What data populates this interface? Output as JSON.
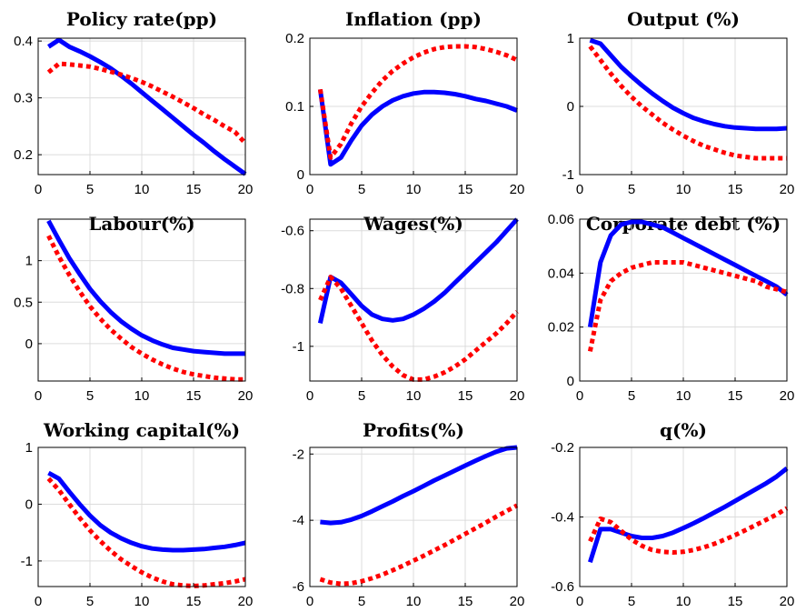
{
  "colors": {
    "series_solid": "#0000ff",
    "series_dotted": "#ff0000",
    "grid": "#dcdcdc"
  },
  "chart_data": [
    {
      "type": "line",
      "title": "Policy rate(pp)",
      "grid": true,
      "xlim": [
        0,
        20
      ],
      "ylim": [
        0.165,
        0.405
      ],
      "xticks": [
        0,
        5,
        10,
        15,
        20
      ],
      "yticks": [
        0.2,
        0.3,
        0.4
      ],
      "x": [
        1,
        2,
        3,
        4,
        5,
        6,
        7,
        8,
        9,
        10,
        11,
        12,
        13,
        14,
        15,
        16,
        17,
        18,
        19,
        20
      ],
      "series": [
        {
          "style": "solid",
          "values": [
            0.39,
            0.402,
            0.39,
            0.382,
            0.373,
            0.363,
            0.352,
            0.339,
            0.325,
            0.31,
            0.295,
            0.28,
            0.265,
            0.25,
            0.235,
            0.221,
            0.206,
            0.192,
            0.179,
            0.166
          ]
        },
        {
          "style": "dotted",
          "values": [
            0.345,
            0.36,
            0.359,
            0.357,
            0.355,
            0.351,
            0.346,
            0.341,
            0.335,
            0.328,
            0.32,
            0.311,
            0.302,
            0.292,
            0.282,
            0.271,
            0.261,
            0.25,
            0.24,
            0.22
          ]
        }
      ]
    },
    {
      "type": "line",
      "title": "Inflation (pp)",
      "grid": true,
      "xlim": [
        0,
        20
      ],
      "ylim": [
        0,
        0.2
      ],
      "xticks": [
        0,
        5,
        10,
        15,
        20
      ],
      "yticks": [
        0,
        0.1,
        0.2
      ],
      "x": [
        1,
        2,
        3,
        4,
        5,
        6,
        7,
        8,
        9,
        10,
        11,
        12,
        13,
        14,
        15,
        16,
        17,
        18,
        19,
        20
      ],
      "series": [
        {
          "style": "solid",
          "values": [
            0.125,
            0.015,
            0.025,
            0.05,
            0.072,
            0.088,
            0.1,
            0.109,
            0.115,
            0.119,
            0.121,
            0.121,
            0.12,
            0.118,
            0.115,
            0.111,
            0.108,
            0.104,
            0.1,
            0.094
          ]
        },
        {
          "style": "dotted",
          "values": [
            0.125,
            0.025,
            0.045,
            0.075,
            0.1,
            0.12,
            0.138,
            0.152,
            0.163,
            0.172,
            0.179,
            0.184,
            0.187,
            0.188,
            0.188,
            0.187,
            0.184,
            0.18,
            0.175,
            0.168
          ]
        }
      ]
    },
    {
      "type": "line",
      "title": "Output (%)",
      "grid": true,
      "xlim": [
        0,
        20
      ],
      "ylim": [
        -1,
        1
      ],
      "xticks": [
        0,
        5,
        10,
        15,
        20
      ],
      "yticks": [
        -1,
        0,
        1
      ],
      "x": [
        1,
        2,
        3,
        4,
        5,
        6,
        7,
        8,
        9,
        10,
        11,
        12,
        13,
        14,
        15,
        16,
        17,
        18,
        19,
        20
      ],
      "series": [
        {
          "style": "solid",
          "values": [
            0.97,
            0.92,
            0.75,
            0.58,
            0.44,
            0.31,
            0.19,
            0.08,
            -0.02,
            -0.1,
            -0.17,
            -0.22,
            -0.26,
            -0.29,
            -0.31,
            -0.32,
            -0.33,
            -0.33,
            -0.33,
            -0.32
          ]
        },
        {
          "style": "dotted",
          "values": [
            0.88,
            0.68,
            0.48,
            0.3,
            0.14,
            0.0,
            -0.12,
            -0.24,
            -0.34,
            -0.43,
            -0.51,
            -0.58,
            -0.63,
            -0.68,
            -0.72,
            -0.74,
            -0.76,
            -0.76,
            -0.76,
            -0.76
          ]
        }
      ]
    },
    {
      "type": "line",
      "title": "Labour(%)",
      "grid": true,
      "xlim": [
        0,
        20
      ],
      "ylim": [
        -0.45,
        1.5
      ],
      "xticks": [
        0,
        5,
        10,
        15,
        20
      ],
      "yticks": [
        0,
        0.5,
        1
      ],
      "x": [
        1,
        2,
        3,
        4,
        5,
        6,
        7,
        8,
        9,
        10,
        11,
        12,
        13,
        14,
        15,
        16,
        17,
        18,
        19,
        20
      ],
      "series": [
        {
          "style": "solid",
          "values": [
            1.48,
            1.25,
            1.03,
            0.84,
            0.66,
            0.51,
            0.38,
            0.27,
            0.18,
            0.1,
            0.04,
            -0.01,
            -0.05,
            -0.07,
            -0.09,
            -0.1,
            -0.11,
            -0.12,
            -0.12,
            -0.12
          ]
        },
        {
          "style": "dotted",
          "values": [
            1.3,
            1.05,
            0.83,
            0.63,
            0.45,
            0.3,
            0.17,
            0.06,
            -0.04,
            -0.12,
            -0.19,
            -0.25,
            -0.3,
            -0.34,
            -0.37,
            -0.39,
            -0.41,
            -0.42,
            -0.43,
            -0.43
          ]
        }
      ]
    },
    {
      "type": "line",
      "title": "Wages(%)",
      "grid": true,
      "xlim": [
        0,
        20
      ],
      "ylim": [
        -1.12,
        -0.56
      ],
      "xticks": [
        0,
        5,
        10,
        15,
        20
      ],
      "yticks": [
        -1,
        -0.8,
        -0.6
      ],
      "x": [
        1,
        2,
        3,
        4,
        5,
        6,
        7,
        8,
        9,
        10,
        11,
        12,
        13,
        14,
        15,
        16,
        17,
        18,
        19,
        20
      ],
      "series": [
        {
          "style": "solid",
          "values": [
            -0.92,
            -0.76,
            -0.78,
            -0.82,
            -0.86,
            -0.89,
            -0.905,
            -0.91,
            -0.905,
            -0.89,
            -0.87,
            -0.845,
            -0.815,
            -0.78,
            -0.745,
            -0.71,
            -0.675,
            -0.64,
            -0.6,
            -0.56
          ]
        },
        {
          "style": "dotted",
          "values": [
            -0.84,
            -0.76,
            -0.8,
            -0.86,
            -0.92,
            -0.98,
            -1.03,
            -1.07,
            -1.1,
            -1.115,
            -1.115,
            -1.105,
            -1.09,
            -1.07,
            -1.045,
            -1.015,
            -0.985,
            -0.955,
            -0.92,
            -0.88
          ]
        }
      ]
    },
    {
      "type": "line",
      "title": "Corporate debt (%)",
      "grid": true,
      "xlim": [
        0,
        20
      ],
      "ylim": [
        0,
        0.06
      ],
      "xticks": [
        0,
        5,
        10,
        15,
        20
      ],
      "yticks": [
        0,
        0.02,
        0.04,
        0.06
      ],
      "x": [
        1,
        2,
        3,
        4,
        5,
        6,
        7,
        8,
        9,
        10,
        11,
        12,
        13,
        14,
        15,
        16,
        17,
        18,
        19,
        20
      ],
      "series": [
        {
          "style": "solid",
          "values": [
            0.02,
            0.044,
            0.054,
            0.058,
            0.059,
            0.059,
            0.058,
            0.057,
            0.055,
            0.053,
            0.051,
            0.049,
            0.047,
            0.045,
            0.043,
            0.041,
            0.039,
            0.037,
            0.035,
            0.032
          ]
        },
        {
          "style": "dotted",
          "values": [
            0.011,
            0.03,
            0.037,
            0.04,
            0.042,
            0.043,
            0.044,
            0.044,
            0.044,
            0.044,
            0.043,
            0.042,
            0.041,
            0.04,
            0.039,
            0.038,
            0.037,
            0.035,
            0.034,
            0.033
          ]
        }
      ]
    },
    {
      "type": "line",
      "title": "Working capital(%)",
      "grid": true,
      "xlim": [
        0,
        20
      ],
      "ylim": [
        -1.45,
        1
      ],
      "xticks": [
        0,
        5,
        10,
        15,
        20
      ],
      "yticks": [
        -1,
        0,
        1
      ],
      "x": [
        1,
        2,
        3,
        4,
        5,
        6,
        7,
        8,
        9,
        10,
        11,
        12,
        13,
        14,
        15,
        16,
        17,
        18,
        19,
        20
      ],
      "series": [
        {
          "style": "solid",
          "values": [
            0.55,
            0.45,
            0.22,
            0.0,
            -0.2,
            -0.37,
            -0.5,
            -0.6,
            -0.68,
            -0.74,
            -0.78,
            -0.8,
            -0.81,
            -0.81,
            -0.8,
            -0.79,
            -0.77,
            -0.75,
            -0.72,
            -0.68
          ]
        },
        {
          "style": "dotted",
          "values": [
            0.45,
            0.25,
            0.0,
            -0.24,
            -0.46,
            -0.65,
            -0.82,
            -0.97,
            -1.09,
            -1.2,
            -1.29,
            -1.36,
            -1.41,
            -1.43,
            -1.44,
            -1.43,
            -1.41,
            -1.39,
            -1.36,
            -1.32
          ]
        }
      ]
    },
    {
      "type": "line",
      "title": "Profits(%)",
      "grid": true,
      "xlim": [
        0,
        20
      ],
      "ylim": [
        -6,
        -1.8
      ],
      "xticks": [
        0,
        5,
        10,
        15,
        20
      ],
      "yticks": [
        -6,
        -4,
        -2
      ],
      "x": [
        1,
        2,
        3,
        4,
        5,
        6,
        7,
        8,
        9,
        10,
        11,
        12,
        13,
        14,
        15,
        16,
        17,
        18,
        19,
        20
      ],
      "series": [
        {
          "style": "solid",
          "values": [
            -4.05,
            -4.08,
            -4.06,
            -3.98,
            -3.87,
            -3.73,
            -3.58,
            -3.43,
            -3.27,
            -3.12,
            -2.96,
            -2.8,
            -2.65,
            -2.5,
            -2.35,
            -2.2,
            -2.06,
            -1.93,
            -1.83,
            -1.8
          ]
        },
        {
          "style": "dotted",
          "values": [
            -5.78,
            -5.88,
            -5.92,
            -5.9,
            -5.84,
            -5.75,
            -5.64,
            -5.51,
            -5.37,
            -5.22,
            -5.07,
            -4.91,
            -4.75,
            -4.58,
            -4.41,
            -4.24,
            -4.07,
            -3.89,
            -3.72,
            -3.55
          ]
        }
      ]
    },
    {
      "type": "line",
      "title": "q(%)",
      "grid": true,
      "xlim": [
        0,
        20
      ],
      "ylim": [
        -0.6,
        -0.2
      ],
      "xticks": [
        0,
        5,
        10,
        15,
        20
      ],
      "yticks": [
        -0.6,
        -0.4,
        -0.2
      ],
      "x": [
        1,
        2,
        3,
        4,
        5,
        6,
        7,
        8,
        9,
        10,
        11,
        12,
        13,
        14,
        15,
        16,
        17,
        18,
        19,
        20
      ],
      "series": [
        {
          "style": "solid",
          "values": [
            -0.53,
            -0.435,
            -0.435,
            -0.445,
            -0.455,
            -0.46,
            -0.46,
            -0.455,
            -0.445,
            -0.432,
            -0.418,
            -0.403,
            -0.387,
            -0.371,
            -0.354,
            -0.337,
            -0.32,
            -0.303,
            -0.284,
            -0.26
          ]
        },
        {
          "style": "dotted",
          "values": [
            -0.47,
            -0.405,
            -0.415,
            -0.44,
            -0.465,
            -0.483,
            -0.495,
            -0.5,
            -0.502,
            -0.5,
            -0.495,
            -0.487,
            -0.477,
            -0.465,
            -0.452,
            -0.438,
            -0.423,
            -0.408,
            -0.393,
            -0.375
          ]
        }
      ]
    }
  ]
}
